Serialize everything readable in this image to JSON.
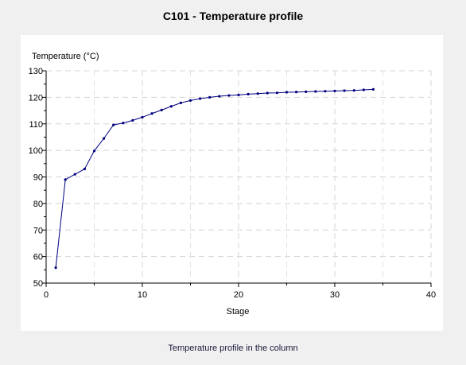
{
  "window": {
    "title": "C101 - Temperature profile",
    "caption": "Temperature profile in the column"
  },
  "chart_data": {
    "type": "line",
    "title": "C101 - Temperature profile",
    "xlabel": "Stage",
    "ylabel": "Temperature (°C)",
    "xlim": [
      0,
      40
    ],
    "ylim": [
      50,
      130
    ],
    "xticks": [
      0,
      10,
      20,
      30,
      40
    ],
    "yticks": [
      50,
      60,
      70,
      80,
      90,
      100,
      110,
      120,
      130
    ],
    "grid": true,
    "line_color": "#000080",
    "series": [
      {
        "x": [
          1,
          2,
          3,
          4,
          5,
          6,
          7,
          8,
          9,
          10,
          11,
          12,
          13,
          14,
          15,
          16,
          17,
          18,
          19,
          20,
          21,
          22,
          23,
          24,
          25,
          26,
          27,
          28,
          29,
          30,
          31,
          32,
          33,
          34
        ],
        "values": [
          55.8,
          89.0,
          91.0,
          93.0,
          99.8,
          104.5,
          109.6,
          110.3,
          111.3,
          112.5,
          113.9,
          115.2,
          116.6,
          117.9,
          118.8,
          119.5,
          120.0,
          120.4,
          120.7,
          120.9,
          121.2,
          121.4,
          121.6,
          121.7,
          121.9,
          122.0,
          122.1,
          122.2,
          122.3,
          122.4,
          122.5,
          122.6,
          122.8,
          123.0
        ]
      }
    ]
  }
}
